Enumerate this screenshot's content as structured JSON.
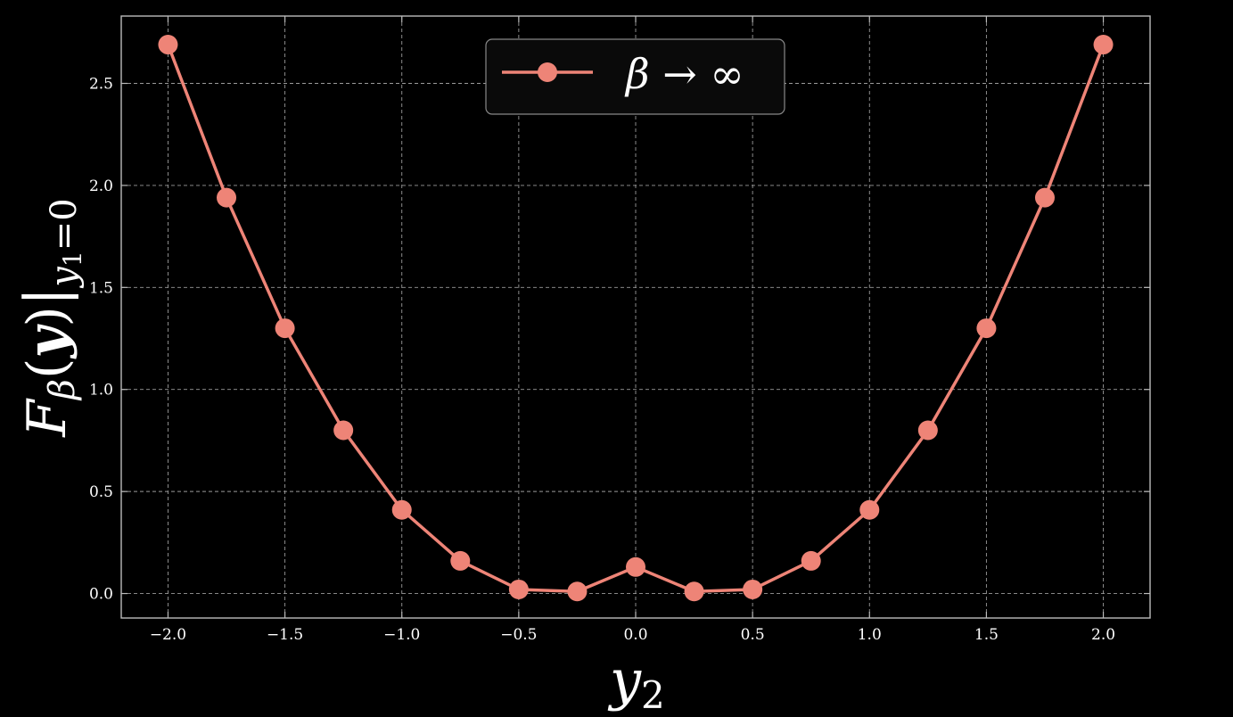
{
  "chart_data": {
    "type": "line",
    "title": "",
    "xlabel": "y2",
    "ylabel": "Fβ(y)|y1=0",
    "xlim": [
      -2.2,
      2.2
    ],
    "ylim": [
      -0.12,
      2.83
    ],
    "xticks": [
      -2.0,
      -1.5,
      -1.0,
      -0.5,
      0.0,
      0.5,
      1.0,
      1.5,
      2.0
    ],
    "xtick_labels": [
      "−2.0",
      "−1.5",
      "−1.0",
      "−0.5",
      "0.0",
      "0.5",
      "1.0",
      "1.5",
      "2.0"
    ],
    "yticks": [
      0.0,
      0.5,
      1.0,
      1.5,
      2.0,
      2.5
    ],
    "ytick_labels": [
      "0.0",
      "0.5",
      "1.0",
      "1.5",
      "2.0",
      "2.5"
    ],
    "grid": true,
    "legend_position": "top-center",
    "series": [
      {
        "name": "β → ∞",
        "color": "#ee8477",
        "marker": "circle",
        "x": [
          -2.0,
          -1.75,
          -1.5,
          -1.25,
          -1.0,
          -0.75,
          -0.5,
          -0.25,
          0.0,
          0.25,
          0.5,
          0.75,
          1.0,
          1.25,
          1.5,
          1.75,
          2.0
        ],
        "y": [
          2.69,
          1.94,
          1.3,
          0.8,
          0.41,
          0.16,
          0.02,
          0.01,
          0.13,
          0.01,
          0.02,
          0.16,
          0.41,
          0.8,
          1.3,
          1.94,
          2.69
        ]
      }
    ]
  },
  "labels": {
    "x_base": "y",
    "x_sub": "2",
    "y_F": "F",
    "y_beta": "β",
    "y_paren_open": "(",
    "y_bold_y": "y",
    "y_paren_close": ")",
    "y_bar": "|",
    "y_sub_y": "y",
    "y_sub_one": "1",
    "y_sub_eq": "=0"
  },
  "colors": {
    "background": "#000000",
    "axes_edge": "#bbbbbb",
    "grid": "#9a9a9a",
    "text": "#ffffff",
    "legend_border": "#888888"
  }
}
